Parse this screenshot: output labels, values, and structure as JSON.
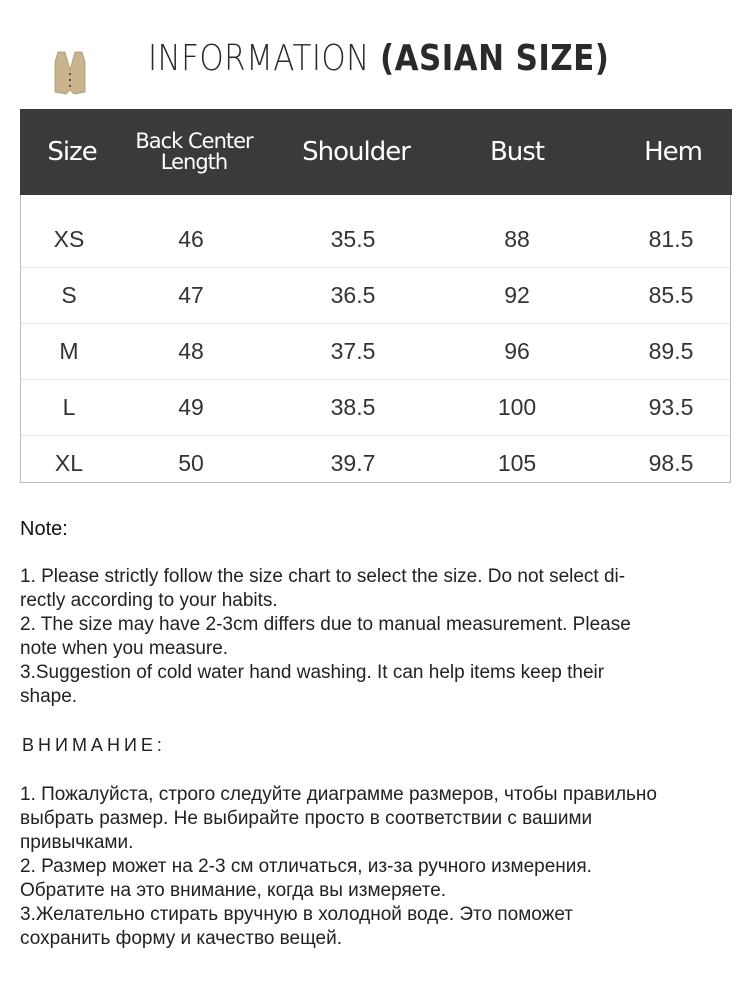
{
  "header": {
    "title_light": "INFORMATION ",
    "title_bold": "(ASIAN SIZE)",
    "product_icon": "vest-thumbnail"
  },
  "table": {
    "columns": [
      "Size",
      "Back Center\nLength",
      "Shoulder",
      "Bust",
      "Hem"
    ],
    "column_lines": {
      "back_center_1": "Back Center",
      "back_center_2": "Length"
    },
    "rows": [
      [
        "XS",
        "46",
        "35.5",
        "88",
        "81.5"
      ],
      [
        "S",
        "47",
        "36.5",
        "92",
        "85.5"
      ],
      [
        "M",
        "48",
        "37.5",
        "96",
        "89.5"
      ],
      [
        "L",
        "49",
        "38.5",
        "100",
        "93.5"
      ],
      [
        "XL",
        "50",
        "39.7",
        "105",
        "98.5"
      ]
    ]
  },
  "note": {
    "heading": "Note:",
    "lines": [
      "1. Please strictly follow the size chart  to select the size. Do not select di-",
      "rectly according to your habits.",
      "2. The size may have 2-3cm differs due to manual measurement. Please",
      "note when you measure.",
      "3.Suggestion of cold water hand washing. It can help items keep their",
      "shape."
    ]
  },
  "note_ru": {
    "heading": "ВНИМАНИЕ:",
    "lines": [
      "1. Пожалуйста, строго следуйте диаграмме размеров, чтобы правильно",
      "выбрать размер. Не выбирайте просто в соответствии с вашими",
      "привычками.",
      "2. Размер может на 2-3 см отличаться, из-за ручного измерения.",
      "Обратите на это внимание, когда вы измеряете.",
      "3.Желательно стирать вручную в холодной воде. Это поможет",
      "сохранить форму и качество вещей."
    ]
  },
  "colors": {
    "header_bg": "#3a3a3a",
    "vest": "#c9b48e"
  }
}
